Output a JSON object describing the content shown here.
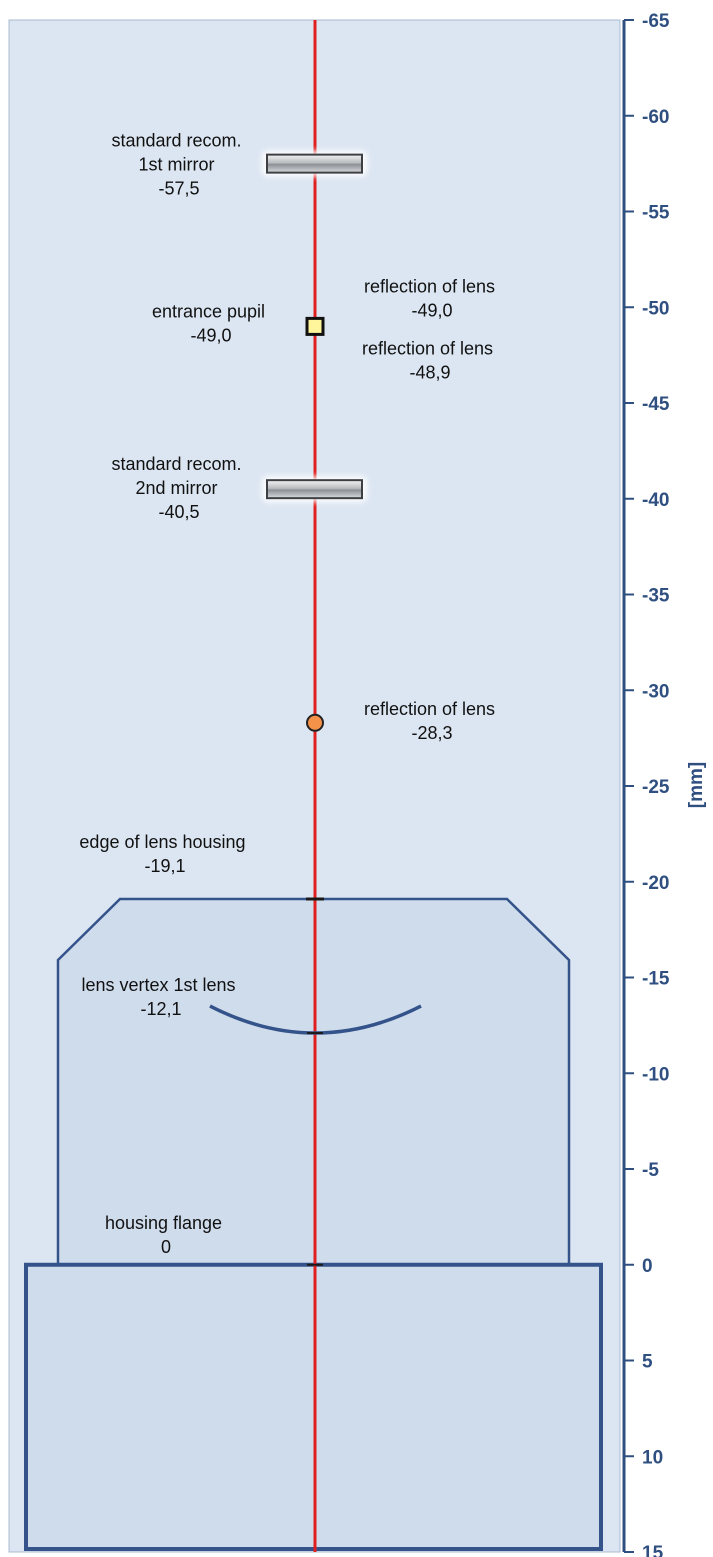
{
  "colors": {
    "panel_fill": "#dce6f2",
    "panel_border": "#a9bbd1",
    "housing_fill": "#cfdcec",
    "housing_stroke": "#34538a",
    "axis_color": "#2f4f80",
    "optical_axis": "#e0201e",
    "pupil_marker_fill": "#fff59a",
    "reflection_marker_fill": "#f4924a"
  },
  "axis": {
    "unit_label": "[mm]",
    "min": -65,
    "max": 15,
    "ticks": [
      {
        "value": -65,
        "label": "-65"
      },
      {
        "value": -60,
        "label": "-60"
      },
      {
        "value": -55,
        "label": "-55"
      },
      {
        "value": -50,
        "label": "-50"
      },
      {
        "value": -45,
        "label": "-45"
      },
      {
        "value": -40,
        "label": "-40"
      },
      {
        "value": -35,
        "label": "-35"
      },
      {
        "value": -30,
        "label": "-30"
      },
      {
        "value": -25,
        "label": "-25"
      },
      {
        "value": -20,
        "label": "-20"
      },
      {
        "value": -15,
        "label": "-15"
      },
      {
        "value": -10,
        "label": "-10"
      },
      {
        "value": -5,
        "label": "-5"
      },
      {
        "value": 0,
        "label": "0"
      },
      {
        "value": 5,
        "label": "5"
      },
      {
        "value": 10,
        "label": "10"
      },
      {
        "value": 15,
        "label": "15"
      }
    ]
  },
  "features": {
    "mirror_1": {
      "value": -57.5,
      "lines": [
        "standard recom.",
        "1st mirror",
        "-57,5"
      ]
    },
    "mirror_2": {
      "value": -40.5,
      "lines": [
        "standard recom.",
        "2nd mirror",
        "-40,5"
      ]
    },
    "entrance_pupil": {
      "value": -49.0,
      "lines": [
        "entrance pupil",
        "-49,0"
      ]
    },
    "reflection_a": {
      "value": -49.0,
      "lines": [
        "reflection of lens",
        "-49,0"
      ]
    },
    "reflection_b": {
      "value": -48.9,
      "lines": [
        "reflection of lens",
        "-48,9"
      ]
    },
    "reflection_c": {
      "value": -28.3,
      "lines": [
        "reflection of lens",
        "-28,3"
      ]
    },
    "lens_housing_edge": {
      "value": -19.1,
      "lines": [
        "edge of lens housing",
        "-19,1"
      ]
    },
    "lens_vertex": {
      "value": -12.1,
      "lines": [
        "lens vertex 1st lens",
        "-12,1"
      ]
    },
    "housing_flange": {
      "value": 0,
      "lines": [
        "housing flange",
        "0"
      ]
    }
  }
}
